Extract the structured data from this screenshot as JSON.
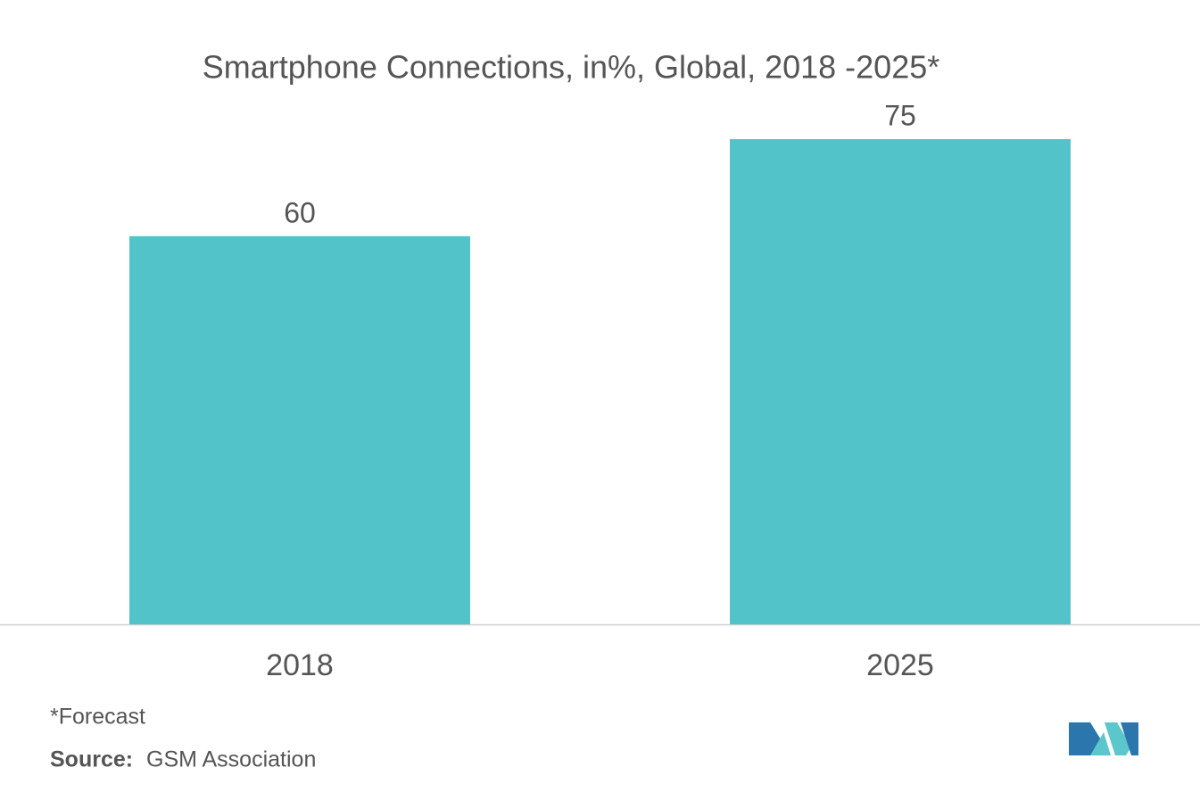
{
  "chart_data": {
    "type": "bar",
    "title": "Smartphone Connections, in%, Global, 2018 -2025*",
    "categories": [
      "2018",
      "2025"
    ],
    "values": [
      60,
      75
    ],
    "color": "#53c3ca",
    "footnote": "*Forecast",
    "source_label": "Source:",
    "source": "GSM Association"
  }
}
